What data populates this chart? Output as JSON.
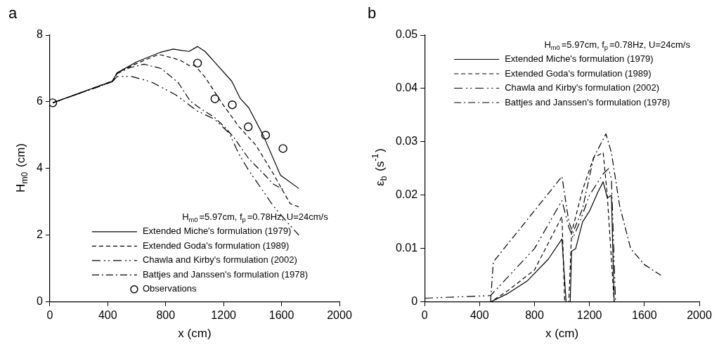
{
  "chart_data": [
    {
      "type": "line",
      "title": "a",
      "xlabel": "x (cm)",
      "ylabel": "H$_{m0}$ (cm)",
      "legend_title": "H$_{m0}$=5.97cm, f$_{p}$=0.78Hz, U=24cm/s",
      "legend": "bottom",
      "marker": "none",
      "xlim": [
        0,
        2000
      ],
      "xticks": [
        0,
        400,
        800,
        1200,
        1600,
        2000
      ],
      "ylim": [
        0,
        8
      ],
      "yticks": [
        0,
        2,
        4,
        6,
        8
      ],
      "grid": false,
      "series": [
        {
          "name": "Extended Miche's formulation (1979)",
          "color": "#000000",
          "line_style": "solid",
          "x": [
            20,
            431,
            465,
            600,
            760,
            852,
            961,
            1020,
            1072,
            1140,
            1256,
            1315,
            1374,
            1475,
            1593,
            1720
          ],
          "values": [
            5.97,
            6.62,
            6.87,
            7.2,
            7.48,
            7.58,
            7.51,
            7.66,
            7.51,
            7.18,
            6.62,
            6.1,
            5.82,
            4.98,
            3.8,
            3.4
          ]
        },
        {
          "name": "Extended Goda's formulation (1989)",
          "color": "#000000",
          "line_style": "dashed",
          "x": [
            20,
            431,
            465,
            600,
            734,
            768,
            900,
            961,
            1000,
            1072,
            1187,
            1305,
            1423,
            1541,
            1659,
            1720
          ],
          "values": [
            5.97,
            6.62,
            6.87,
            7.15,
            7.39,
            7.41,
            7.25,
            7.09,
            7.1,
            6.74,
            5.97,
            5.26,
            4.7,
            3.86,
            2.95,
            2.85
          ]
        },
        {
          "name": "Chawla and Kirby's formulation (2002)",
          "color": "#000000",
          "line_style": "dashdotdot",
          "x": [
            20,
            431,
            465,
            566,
            700,
            869,
            1020,
            1138,
            1239,
            1306,
            1374,
            1475,
            1541,
            1643,
            1720
          ],
          "values": [
            5.97,
            6.6,
            6.76,
            6.76,
            6.6,
            6.21,
            5.72,
            5.48,
            5.06,
            4.43,
            3.94,
            3.31,
            2.89,
            2.37,
            2.0
          ]
        },
        {
          "name": "Battjes and Janssen's formulation (1978)",
          "color": "#000000",
          "line_style": "dashdot",
          "x": [
            20,
            431,
            465,
            550,
            650,
            768,
            886,
            970,
            1037,
            1138,
            1206,
            1273,
            1374,
            1475,
            1541,
            1620
          ],
          "values": [
            5.97,
            6.6,
            6.85,
            7.02,
            7.13,
            7.0,
            6.58,
            6.02,
            5.81,
            5.53,
            5.25,
            4.92,
            4.29,
            3.85,
            3.54,
            3.35
          ]
        },
        {
          "name": "Observations",
          "type": "scatter",
          "marker": "circle",
          "color": "#000000",
          "x": [
            20,
            1020,
            1140,
            1260,
            1370,
            1490,
            1610
          ],
          "values": [
            5.97,
            7.16,
            6.09,
            5.91,
            5.25,
            5.0,
            4.6
          ]
        }
      ]
    },
    {
      "type": "line",
      "title": "b",
      "xlabel": "x (cm)",
      "ylabel": "ε$_{b}$ (s$^{-1}$)",
      "legend_title": "H$_{m0}$=5.97cm, f$_{p}$=0.78Hz, U=24cm/s",
      "legend": "top",
      "marker": "none",
      "xlim": [
        0,
        2000
      ],
      "xticks": [
        0,
        400,
        800,
        1200,
        1600,
        2000
      ],
      "ylim": [
        0,
        0.05
      ],
      "yticks": [
        0,
        0.01,
        0.02,
        0.03,
        0.04,
        0.05
      ],
      "grid": false,
      "series": [
        {
          "name": "Extended Miche's formulation (1979)",
          "color": "#000000",
          "line_style": "solid",
          "x": [
            0,
            480,
            600,
            750,
            900,
            1000,
            1030,
            1060,
            1070,
            1100,
            1150,
            1200,
            1260,
            1300,
            1330,
            1360,
            1380,
            1500,
            1700
          ],
          "values": [
            0,
            0,
            0.0015,
            0.004,
            0.008,
            0.0118,
            0,
            0,
            0.0095,
            0.01,
            0.015,
            0.017,
            0.0205,
            0.0225,
            0.0195,
            0.02,
            0,
            0,
            0
          ]
        },
        {
          "name": "Extended Goda's formulation (1989)",
          "color": "#000000",
          "line_style": "dashed",
          "x": [
            0,
            480,
            600,
            800,
            900,
            1000,
            1020,
            1050,
            1070,
            1150,
            1230,
            1300,
            1330,
            1380,
            1500,
            1700
          ],
          "values": [
            0,
            0,
            0.002,
            0.006,
            0.011,
            0.016,
            0,
            0,
            0.013,
            0.021,
            0.027,
            0.028,
            0.02,
            0,
            0,
            0
          ]
        },
        {
          "name": "Chawla and Kirby's formulation (2002)",
          "color": "#000000",
          "line_style": "dashdotdot",
          "x": [
            0,
            480,
            600,
            800,
            1000,
            1050,
            1080,
            1130,
            1200,
            1300,
            1340,
            1360,
            1390,
            1500,
            1700
          ],
          "values": [
            0.0007,
            0.0012,
            0.0045,
            0.01,
            0.019,
            0.014,
            0.012,
            0.015,
            0.02,
            0.024,
            0.025,
            0.023,
            0,
            0,
            0
          ]
        },
        {
          "name": "Battjes and Janssen's formulation (1978)",
          "color": "#000000",
          "line_style": "dashdot",
          "x": [
            480,
            500,
            1000,
            1050,
            1080,
            1150,
            1230,
            1320,
            1360,
            1420,
            1500,
            1600,
            1720
          ],
          "values": [
            0,
            0.0075,
            0.0235,
            0.015,
            0.013,
            0.0175,
            0.027,
            0.0315,
            0.028,
            0.018,
            0.01,
            0.007,
            0.005
          ]
        }
      ]
    }
  ]
}
